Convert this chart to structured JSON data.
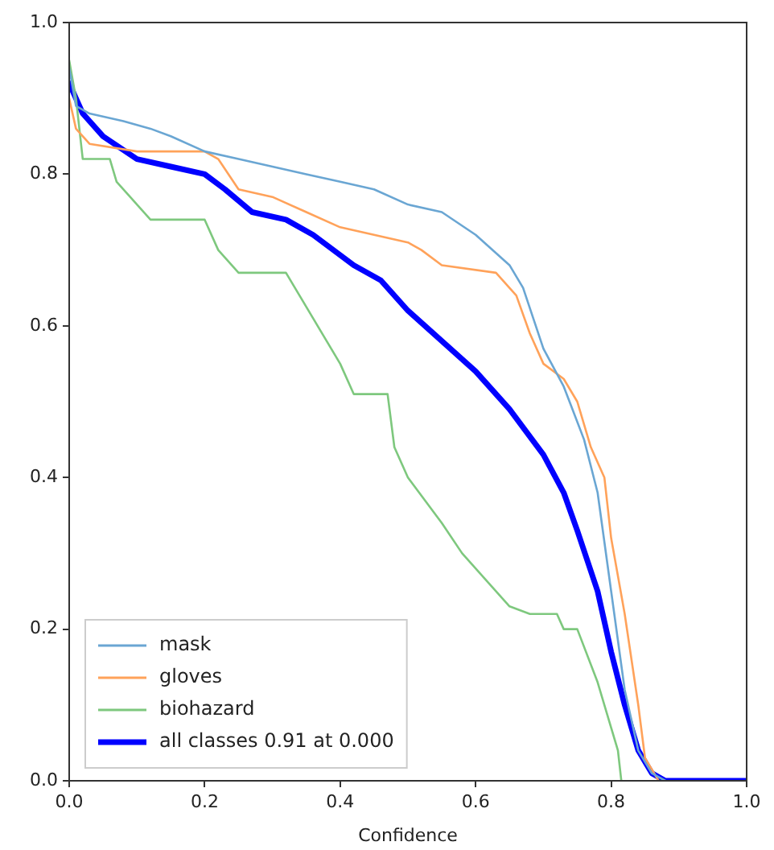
{
  "chart_data": {
    "type": "line",
    "xlabel": "Confidence",
    "xlim": [
      0,
      1
    ],
    "ylim": [
      0,
      1
    ],
    "xticks": [
      {
        "value": 0,
        "label": "0.0"
      },
      {
        "value": 0.2,
        "label": "0.2"
      },
      {
        "value": 0.4,
        "label": "0.4"
      },
      {
        "value": 0.6,
        "label": "0.6"
      },
      {
        "value": 0.8,
        "label": "0.8"
      },
      {
        "value": 1,
        "label": "1.0"
      }
    ],
    "yticks": [
      {
        "value": 0,
        "label": "0.0"
      },
      {
        "value": 0.2,
        "label": "0.2"
      },
      {
        "value": 0.4,
        "label": "0.4"
      },
      {
        "value": 0.6,
        "label": "0.6"
      },
      {
        "value": 0.8,
        "label": "0.8"
      },
      {
        "value": 1,
        "label": "1.0"
      }
    ],
    "grid": false,
    "legend": "bottom left",
    "marker": "none",
    "line_style": "solid",
    "series": [
      {
        "name": "mask",
        "color": "#6aa6d3",
        "x": [
          0,
          0.01,
          0.03,
          0.08,
          0.12,
          0.15,
          0.2,
          0.25,
          0.3,
          0.35,
          0.4,
          0.45,
          0.5,
          0.55,
          0.6,
          0.65,
          0.67,
          0.7,
          0.73,
          0.76,
          0.78,
          0.8,
          0.82,
          0.84,
          0.86,
          0.88
        ],
        "values": [
          0.94,
          0.89,
          0.88,
          0.87,
          0.86,
          0.85,
          0.83,
          0.82,
          0.81,
          0.8,
          0.79,
          0.78,
          0.76,
          0.75,
          0.72,
          0.68,
          0.65,
          0.57,
          0.52,
          0.45,
          0.38,
          0.25,
          0.12,
          0.04,
          0.01,
          0
        ]
      },
      {
        "name": "gloves",
        "color": "#ffa25a",
        "x": [
          0,
          0.01,
          0.03,
          0.1,
          0.2,
          0.22,
          0.25,
          0.3,
          0.35,
          0.4,
          0.5,
          0.52,
          0.55,
          0.63,
          0.66,
          0.68,
          0.7,
          0.73,
          0.75,
          0.77,
          0.79,
          0.8,
          0.82,
          0.84,
          0.85,
          0.87
        ],
        "values": [
          0.9,
          0.86,
          0.84,
          0.83,
          0.83,
          0.82,
          0.78,
          0.77,
          0.75,
          0.73,
          0.71,
          0.7,
          0.68,
          0.67,
          0.64,
          0.59,
          0.55,
          0.53,
          0.5,
          0.44,
          0.4,
          0.32,
          0.22,
          0.1,
          0.03,
          0
        ]
      },
      {
        "name": "biohazard",
        "color": "#7ec87e",
        "x": [
          0,
          0.01,
          0.02,
          0.06,
          0.07,
          0.09,
          0.12,
          0.2,
          0.22,
          0.25,
          0.32,
          0.34,
          0.36,
          0.38,
          0.4,
          0.42,
          0.47,
          0.48,
          0.5,
          0.55,
          0.58,
          0.62,
          0.65,
          0.68,
          0.72,
          0.73,
          0.75,
          0.78,
          0.8,
          0.81,
          0.815
        ],
        "values": [
          0.95,
          0.9,
          0.82,
          0.82,
          0.79,
          0.77,
          0.74,
          0.74,
          0.7,
          0.67,
          0.67,
          0.64,
          0.61,
          0.58,
          0.55,
          0.51,
          0.51,
          0.44,
          0.4,
          0.34,
          0.3,
          0.26,
          0.23,
          0.22,
          0.22,
          0.2,
          0.2,
          0.13,
          0.07,
          0.04,
          0
        ]
      },
      {
        "name": "all classes 0.91 at 0.000",
        "color": "#0000ff",
        "x": [
          0,
          0.02,
          0.05,
          0.1,
          0.15,
          0.2,
          0.23,
          0.27,
          0.32,
          0.36,
          0.42,
          0.46,
          0.5,
          0.55,
          0.6,
          0.65,
          0.7,
          0.73,
          0.75,
          0.78,
          0.8,
          0.82,
          0.84,
          0.86,
          0.88,
          1
        ],
        "values": [
          0.92,
          0.88,
          0.85,
          0.82,
          0.81,
          0.8,
          0.78,
          0.75,
          0.74,
          0.72,
          0.68,
          0.66,
          0.62,
          0.58,
          0.54,
          0.49,
          0.43,
          0.38,
          0.33,
          0.25,
          0.17,
          0.1,
          0.04,
          0.01,
          0,
          0
        ]
      }
    ]
  }
}
